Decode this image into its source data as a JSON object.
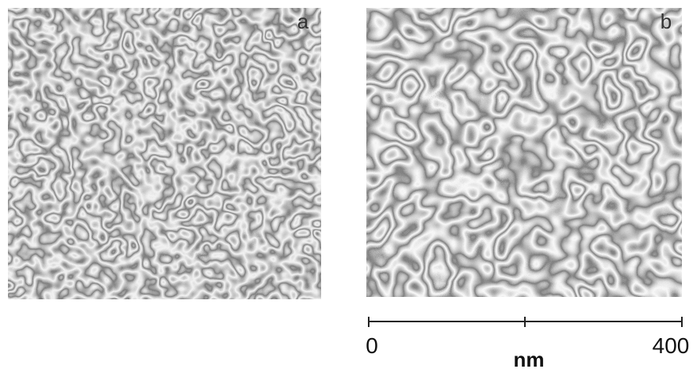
{
  "panels": [
    {
      "label": "a"
    },
    {
      "label": "b"
    }
  ],
  "scale_bar": {
    "ticks": [
      0,
      400
    ],
    "unit": "nm"
  }
}
